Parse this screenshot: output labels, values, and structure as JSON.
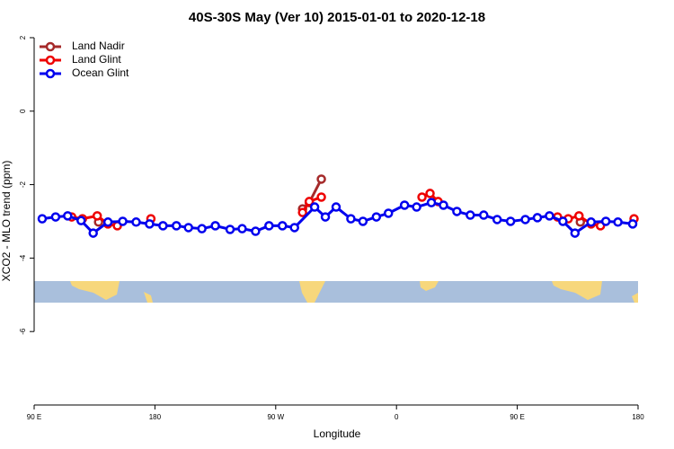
{
  "chart_data": {
    "type": "line",
    "title": "40S-30S May (Ver 10)   2015-01-01 to 2020-12-18",
    "xlabel": "Longitude",
    "ylabel": "XCO2 - MLO trend (ppm)",
    "xlim": [
      90,
      540
    ],
    "ylim": [
      -8,
      2.25
    ],
    "xticks": [
      {
        "value": 90,
        "label": "90 E"
      },
      {
        "value": 180,
        "label": "180"
      },
      {
        "value": 270,
        "label": "90 W"
      },
      {
        "value": 360,
        "label": "0"
      },
      {
        "value": 450,
        "label": "90 E"
      },
      {
        "value": 540,
        "label": "180"
      }
    ],
    "yticks": [
      2,
      0,
      -2,
      -4,
      -6
    ],
    "legend": "top-left",
    "series": [
      {
        "name": "Land Nadir",
        "color": "#a52a2a",
        "x": [
          138,
          null,
          290,
          295,
          304,
          null,
          497
        ],
        "values": [
          -3.02,
          null,
          -2.66,
          -2.49,
          -1.85,
          null,
          -3.02
        ]
      },
      {
        "name": "Land Glint",
        "color": "#ee0000",
        "x": [
          118,
          126,
          137,
          145,
          152,
          null,
          177,
          null,
          290,
          295,
          304,
          null,
          379,
          385,
          391,
          null,
          480,
          488,
          496,
          505,
          512,
          null,
          537
        ],
        "values": [
          -2.88,
          -2.93,
          -2.85,
          -3.07,
          -3.12,
          null,
          -2.93,
          null,
          -2.76,
          -2.46,
          -2.34,
          null,
          -2.34,
          -2.24,
          -2.46,
          null,
          -2.88,
          -2.93,
          -2.85,
          -3.07,
          -3.12,
          null,
          -2.93
        ]
      },
      {
        "name": "Ocean Glint",
        "color": "#0000ee",
        "x": [
          96,
          106,
          115,
          125,
          134,
          145,
          156,
          166,
          176,
          186,
          196,
          205,
          215,
          225,
          236,
          245,
          255,
          265,
          275,
          284,
          299,
          307,
          315,
          326,
          335,
          345,
          354,
          366,
          375,
          386,
          395,
          405,
          415,
          425,
          435,
          445,
          456,
          465,
          474,
          484,
          493,
          505,
          516,
          525,
          536
        ],
        "values": [
          -2.93,
          -2.88,
          -2.85,
          -2.98,
          -3.32,
          -3.02,
          -3.0,
          -3.02,
          -3.07,
          -3.12,
          -3.12,
          -3.17,
          -3.2,
          -3.12,
          -3.22,
          -3.2,
          -3.27,
          -3.12,
          -3.12,
          -3.17,
          -2.61,
          -2.88,
          -2.61,
          -2.93,
          -3.0,
          -2.88,
          -2.78,
          -2.56,
          -2.61,
          -2.49,
          -2.56,
          -2.73,
          -2.83,
          -2.83,
          -2.95,
          -3.0,
          -2.95,
          -2.9,
          -2.85,
          -3.0,
          -3.32,
          -3.02,
          -3.0,
          -3.02,
          -3.07
        ]
      }
    ]
  }
}
